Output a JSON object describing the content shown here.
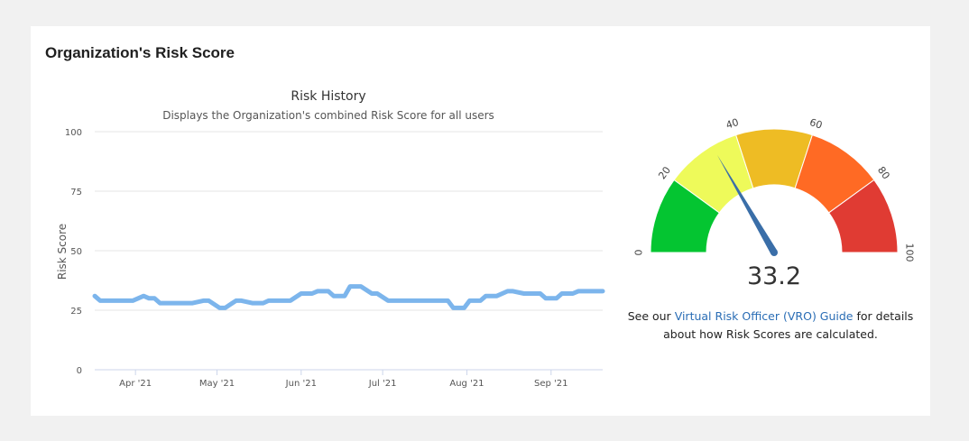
{
  "panel": {
    "title": "Organization's Risk Score"
  },
  "history": {
    "link_text": "Virtual Risk Officer (VRO) Guide"
  },
  "note": {
    "prefix": "See our ",
    "link": "Virtual Risk Officer (VRO) Guide",
    "suffix": " for details about how Risk Scores are calculated."
  },
  "chart_data": [
    {
      "type": "line",
      "title": "Risk History",
      "subtitle": "Displays the Organization's combined Risk Score for all users",
      "xlabel": "",
      "ylabel": "Risk Score",
      "ylim": [
        0,
        100
      ],
      "yticks": [
        0,
        25,
        50,
        75,
        100
      ],
      "xlim": [
        "2021-03-17",
        "2021-09-20"
      ],
      "xticks": [
        {
          "date": "2021-04-01",
          "label": "Apr '21"
        },
        {
          "date": "2021-05-01",
          "label": "May '21"
        },
        {
          "date": "2021-06-01",
          "label": "Jun '21"
        },
        {
          "date": "2021-07-01",
          "label": "Jul '21"
        },
        {
          "date": "2021-08-01",
          "label": "Aug '21"
        },
        {
          "date": "2021-09-01",
          "label": "Sep '21"
        }
      ],
      "grid": true,
      "line_color": "#7cb5ec",
      "series": [
        {
          "x": [
            "2021-03-17",
            "2021-03-19",
            "2021-03-23",
            "2021-03-27",
            "2021-03-31",
            "2021-04-04",
            "2021-04-06",
            "2021-04-08",
            "2021-04-10",
            "2021-04-14",
            "2021-04-18",
            "2021-04-22",
            "2021-04-26",
            "2021-04-28",
            "2021-05-02",
            "2021-05-04",
            "2021-05-08",
            "2021-05-10",
            "2021-05-14",
            "2021-05-18",
            "2021-05-20",
            "2021-05-24",
            "2021-05-28",
            "2021-06-01",
            "2021-06-05",
            "2021-06-07",
            "2021-06-11",
            "2021-06-13",
            "2021-06-17",
            "2021-06-19",
            "2021-06-23",
            "2021-06-27",
            "2021-06-29",
            "2021-07-03",
            "2021-07-05",
            "2021-07-09",
            "2021-07-13",
            "2021-07-17",
            "2021-07-21",
            "2021-07-25",
            "2021-07-27",
            "2021-07-31",
            "2021-08-02",
            "2021-08-06",
            "2021-08-08",
            "2021-08-12",
            "2021-08-16",
            "2021-08-18",
            "2021-08-22",
            "2021-08-24",
            "2021-08-28",
            "2021-08-30",
            "2021-09-03",
            "2021-09-05",
            "2021-09-09",
            "2021-09-11",
            "2021-09-15",
            "2021-09-17",
            "2021-09-20"
          ],
          "values": [
            31,
            29,
            29,
            29,
            29,
            31,
            30,
            30,
            28,
            28,
            28,
            28,
            29,
            29,
            26,
            26,
            29,
            29,
            28,
            28,
            29,
            29,
            29,
            32,
            32,
            33,
            33,
            31,
            31,
            35,
            35,
            32,
            32,
            29,
            29,
            29,
            29,
            29,
            29,
            29,
            26,
            26,
            29,
            29,
            31,
            31,
            33,
            33,
            32,
            32,
            32,
            30,
            30,
            32,
            32,
            33,
            33,
            33,
            33
          ]
        }
      ]
    },
    {
      "type": "gauge",
      "value": 33.2,
      "value_label": "33.2",
      "range": [
        0,
        100
      ],
      "tick_labels": [
        "0",
        "20",
        "40",
        "60",
        "80",
        "100"
      ],
      "bands": [
        {
          "from": 0,
          "to": 20,
          "color": "#04c531"
        },
        {
          "from": 20,
          "to": 40,
          "color": "#eefa5a"
        },
        {
          "from": 40,
          "to": 60,
          "color": "#eebc24"
        },
        {
          "from": 60,
          "to": 80,
          "color": "#ff6a24"
        },
        {
          "from": 80,
          "to": 100,
          "color": "#e03b33"
        }
      ],
      "needle_color": "#3a6ea8"
    }
  ]
}
